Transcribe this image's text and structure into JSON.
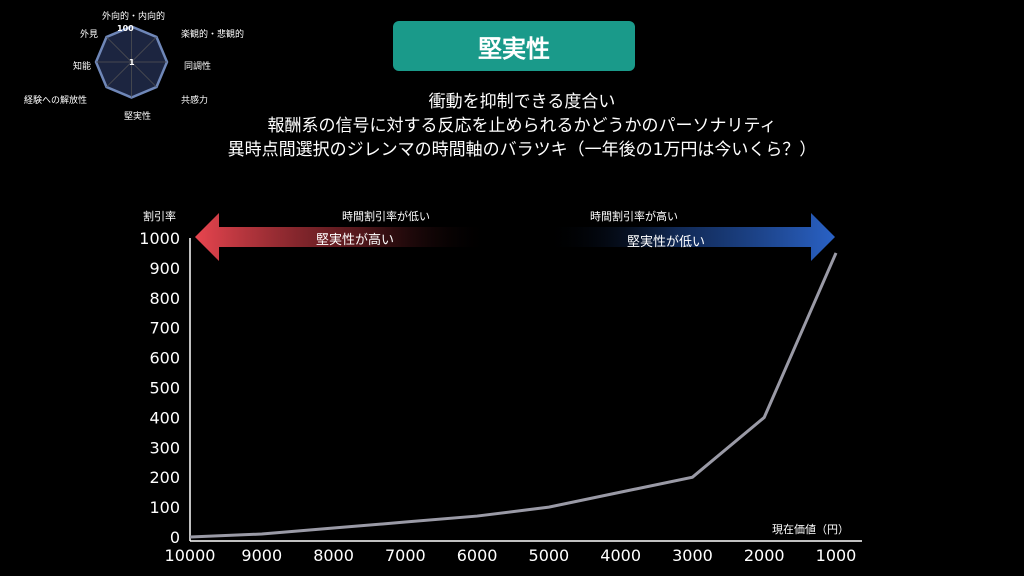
{
  "header": {
    "title": "堅実性"
  },
  "description": [
    "衝動を抑制できる度合い",
    "報酬系の信号に対する反応を止められるかどうかのパーソナリティ",
    "異時点間選択のジレンマの時間軸のバラツキ（一年後の1万円は今いくら？）"
  ],
  "radar": {
    "labels": [
      "外向的・内向的",
      "楽観的・悲観的",
      "同調性",
      "共感力",
      "堅実性",
      "経験への解放性",
      "知能",
      "外見"
    ],
    "max_label": "100",
    "min_label": "1"
  },
  "arrows": {
    "left_small": "時間割引率が低い",
    "left_big": "堅実性が高い",
    "right_small": "時間割引率が高い",
    "right_big": "堅実性が低い",
    "left_color": "#e8454f",
    "right_color": "#2a62c6"
  },
  "chart_data": {
    "type": "line",
    "ylabel": "割引率",
    "xlabel": "現在価値（円）",
    "x": [
      "10000",
      "9000",
      "8000",
      "7000",
      "6000",
      "5000",
      "4000",
      "3000",
      "2000",
      "1000"
    ],
    "y": [
      0,
      10,
      30,
      50,
      70,
      100,
      150,
      200,
      400,
      950
    ],
    "ylim": [
      0,
      1000
    ],
    "yticks": [
      "0",
      "100",
      "200",
      "300",
      "400",
      "500",
      "600",
      "700",
      "800",
      "900",
      "1000"
    ],
    "line_color": "#9a9aa6"
  }
}
